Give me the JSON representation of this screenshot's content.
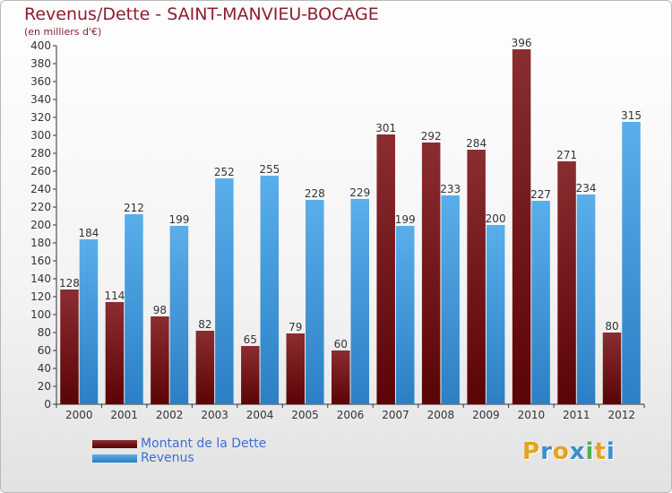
{
  "title": "Revenus/Dette - SAINT-MANVIEU-BOCAGE",
  "subtitle": "(en milliers d'€)",
  "colors": {
    "dette": "#7a1416",
    "revenus": "#4da3e6",
    "title": "#8e1c2e",
    "legend_text": "#3b6fd6"
  },
  "logo": {
    "text": "Proxiti",
    "letters": [
      "P",
      "r",
      "o",
      "x",
      "i",
      "t",
      "i"
    ],
    "colors": [
      "#e6a21a",
      "#3a8fd1",
      "#e6a21a",
      "#3a8fd1",
      "#4caf50",
      "#e6a21a",
      "#3a8fd1"
    ]
  },
  "chart_data": {
    "type": "bar",
    "categories": [
      "2000",
      "2001",
      "2002",
      "2003",
      "2004",
      "2005",
      "2006",
      "2007",
      "2008",
      "2009",
      "2010",
      "2011",
      "2012"
    ],
    "series": [
      {
        "name": "Montant de la Dette",
        "values": [
          128,
          114,
          98,
          82,
          65,
          79,
          60,
          301,
          292,
          284,
          396,
          271,
          80
        ]
      },
      {
        "name": "Revenus",
        "values": [
          184,
          212,
          199,
          252,
          255,
          228,
          229,
          199,
          233,
          200,
          227,
          234,
          315
        ]
      }
    ],
    "ylim": [
      0,
      400
    ],
    "yticks": [
      0,
      20,
      40,
      60,
      80,
      100,
      120,
      140,
      160,
      180,
      200,
      220,
      240,
      260,
      280,
      300,
      320,
      340,
      360,
      380,
      400
    ],
    "grid": false,
    "legend_position": "bottom-left"
  }
}
